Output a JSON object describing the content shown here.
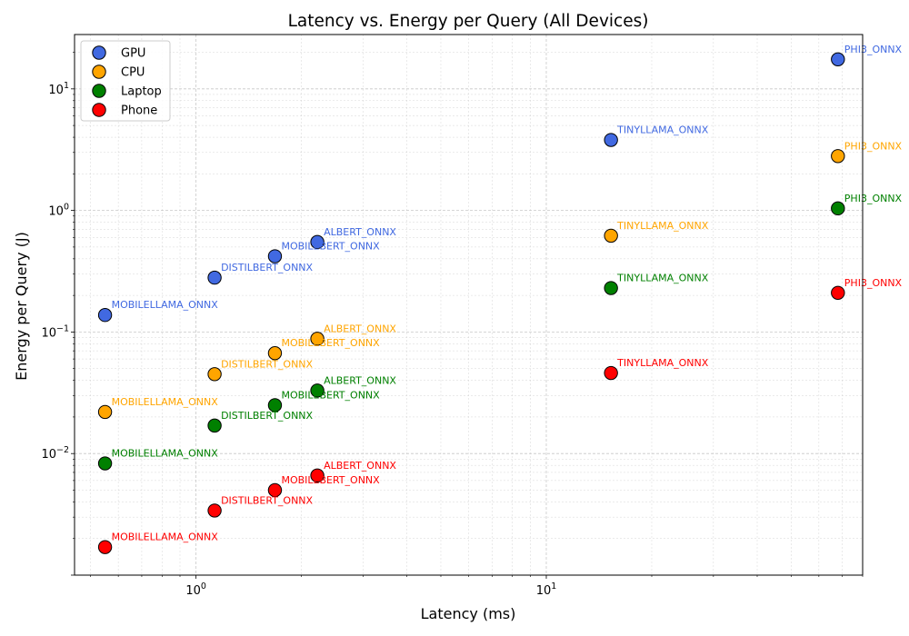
{
  "chart_data": {
    "type": "scatter",
    "title": "Latency vs. Energy per Query (All Devices)",
    "xlabel": "Latency (ms)",
    "ylabel": "Energy per Query (J)",
    "x_scale": "log",
    "y_scale": "log",
    "xlim": [
      0.45,
      80
    ],
    "ylim": [
      0.001,
      28
    ],
    "x_ticks": [
      {
        "value": 1,
        "base": "10",
        "exp": "0"
      },
      {
        "value": 10,
        "base": "10",
        "exp": "1"
      }
    ],
    "y_ticks": [
      {
        "value": 0.01,
        "base": "10",
        "exp": "−2"
      },
      {
        "value": 0.1,
        "base": "10",
        "exp": "−1"
      },
      {
        "value": 1,
        "base": "10",
        "exp": "0"
      },
      {
        "value": 10,
        "base": "10",
        "exp": "1"
      }
    ],
    "grid": true,
    "legend_position": "upper-left",
    "series": [
      {
        "name": "GPU",
        "color": "#4169e1",
        "points": [
          {
            "x": 0.55,
            "y": 0.138,
            "label": "MOBILELLAMA_ONNX"
          },
          {
            "x": 1.13,
            "y": 0.28,
            "label": "DISTILBERT_ONNX"
          },
          {
            "x": 1.68,
            "y": 0.42,
            "label": "MOBILEBERT_ONNX"
          },
          {
            "x": 2.22,
            "y": 0.55,
            "label": "ALBERT_ONNX"
          },
          {
            "x": 15.3,
            "y": 3.8,
            "label": "TINYLLAMA_ONNX"
          },
          {
            "x": 68,
            "y": 17.5,
            "label": "PHI3_ONNX"
          }
        ]
      },
      {
        "name": "CPU",
        "color": "#ffa500",
        "points": [
          {
            "x": 0.55,
            "y": 0.022,
            "label": "MOBILELLAMA_ONNX"
          },
          {
            "x": 1.13,
            "y": 0.045,
            "label": "DISTILBERT_ONNX"
          },
          {
            "x": 1.68,
            "y": 0.067,
            "label": "MOBILEBERT_ONNX"
          },
          {
            "x": 2.22,
            "y": 0.088,
            "label": "ALBERT_ONNX"
          },
          {
            "x": 15.3,
            "y": 0.62,
            "label": "TINYLLAMA_ONNX"
          },
          {
            "x": 68,
            "y": 2.8,
            "label": "PHI3_ONNX"
          }
        ]
      },
      {
        "name": "Laptop",
        "color": "#008000",
        "points": [
          {
            "x": 0.55,
            "y": 0.0083,
            "label": "MOBILELLAMA_ONNX"
          },
          {
            "x": 1.13,
            "y": 0.017,
            "label": "DISTILBERT_ONNX"
          },
          {
            "x": 1.68,
            "y": 0.025,
            "label": "MOBILEBERT_ONNX"
          },
          {
            "x": 2.22,
            "y": 0.033,
            "label": "ALBERT_ONNX"
          },
          {
            "x": 15.3,
            "y": 0.23,
            "label": "TINYLLAMA_ONNX"
          },
          {
            "x": 68,
            "y": 1.04,
            "label": "PHI3_ONNX"
          }
        ]
      },
      {
        "name": "Phone",
        "color": "#ff0000",
        "points": [
          {
            "x": 0.55,
            "y": 0.0017,
            "label": "MOBILELLAMA_ONNX"
          },
          {
            "x": 1.13,
            "y": 0.0034,
            "label": "DISTILBERT_ONNX"
          },
          {
            "x": 1.68,
            "y": 0.005,
            "label": "MOBILEBERT_ONNX"
          },
          {
            "x": 2.22,
            "y": 0.0066,
            "label": "ALBERT_ONNX"
          },
          {
            "x": 15.3,
            "y": 0.046,
            "label": "TINYLLAMA_ONNX"
          },
          {
            "x": 68,
            "y": 0.21,
            "label": "PHI3_ONNX"
          }
        ]
      }
    ]
  }
}
